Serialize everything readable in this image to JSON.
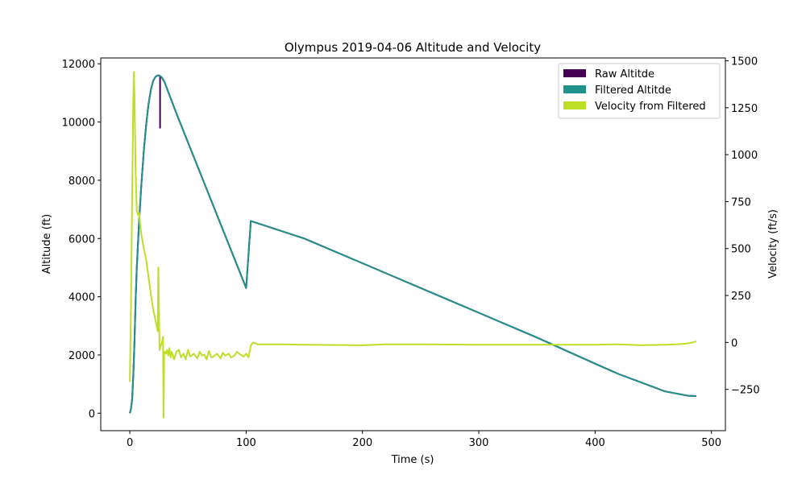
{
  "chart_data": {
    "type": "line",
    "title": "Olympus 2019-04-06 Altitude and Velocity",
    "xlabel": "Time (s)",
    "ylabel_left": "Altitude (ft)",
    "ylabel_right": "Velocity (ft/s)",
    "xlim": [
      -25,
      512
    ],
    "ylim_left": [
      -600,
      12200
    ],
    "ylim_right": [
      -470,
      1515
    ],
    "xticks": [
      0,
      100,
      200,
      300,
      400,
      500
    ],
    "yticks_left": [
      0,
      2000,
      4000,
      6000,
      8000,
      10000,
      12000
    ],
    "yticks_right": [
      -250,
      0,
      250,
      500,
      750,
      1000,
      1250,
      1500
    ],
    "grid": false,
    "legend_position": "top-right",
    "series": [
      {
        "name": "Raw Altitde",
        "axis": "left",
        "color": "#440154",
        "x": [
          0,
          1,
          2,
          3,
          4,
          5,
          6,
          8,
          10,
          12,
          14,
          16,
          18,
          20,
          22,
          24,
          25,
          26,
          26.01,
          26.02,
          27,
          28,
          30,
          40,
          50,
          60,
          70,
          80,
          90,
          100,
          104,
          150,
          200,
          250,
          300,
          350,
          400,
          420,
          440,
          460,
          480,
          487
        ],
        "values": [
          0,
          150,
          500,
          1300,
          2500,
          3900,
          5000,
          6600,
          7900,
          9000,
          9900,
          10600,
          11100,
          11400,
          11550,
          11600,
          11600,
          11580,
          9800,
          11580,
          11550,
          11500,
          11350,
          10300,
          9300,
          8300,
          7300,
          6300,
          5300,
          4300,
          6600,
          6000,
          5150,
          4300,
          3450,
          2600,
          1700,
          1350,
          1050,
          750,
          600,
          590
        ]
      },
      {
        "name": "Filtered Altitde",
        "axis": "left",
        "color": "#21918c",
        "x": [
          0,
          1,
          2,
          3,
          4,
          5,
          6,
          8,
          10,
          12,
          14,
          16,
          18,
          20,
          22,
          24,
          25,
          26,
          27,
          28,
          30,
          40,
          50,
          60,
          70,
          80,
          90,
          100,
          104,
          150,
          200,
          250,
          300,
          350,
          400,
          420,
          440,
          460,
          480,
          487
        ],
        "values": [
          0,
          150,
          500,
          1300,
          2500,
          3900,
          5000,
          6600,
          7900,
          9000,
          9900,
          10600,
          11100,
          11400,
          11550,
          11600,
          11600,
          11580,
          11550,
          11500,
          11350,
          10300,
          9300,
          8300,
          7300,
          6300,
          5300,
          4300,
          6600,
          6000,
          5150,
          4300,
          3450,
          2600,
          1700,
          1350,
          1050,
          750,
          600,
          590
        ]
      },
      {
        "name": "Velocity from Filtered",
        "axis": "right",
        "color": "#bddf26",
        "x": [
          0,
          1,
          2,
          3,
          3.5,
          4,
          5,
          6,
          7,
          8,
          9,
          10,
          12,
          14,
          16,
          18,
          20,
          22,
          24,
          24.5,
          25,
          25.5,
          26,
          27,
          28,
          28.5,
          29,
          29.5,
          30,
          31,
          32,
          33,
          34,
          35,
          36,
          38,
          40,
          42,
          44,
          46,
          48,
          50,
          52,
          55,
          58,
          60,
          62,
          64,
          66,
          68,
          70,
          72,
          75,
          78,
          80,
          82,
          85,
          87,
          90,
          92,
          95,
          98,
          100,
          102,
          104,
          106,
          110,
          130,
          150,
          200,
          220,
          250,
          300,
          350,
          400,
          420,
          440,
          460,
          470,
          480,
          487
        ],
        "values": [
          -210,
          200,
          800,
          1300,
          1440,
          1300,
          900,
          700,
          680,
          690,
          620,
          570,
          500,
          440,
          350,
          260,
          180,
          120,
          60,
          400,
          200,
          -40,
          -30,
          -10,
          10,
          30,
          -400,
          -50,
          -50,
          -60,
          -40,
          -70,
          -30,
          -80,
          -50,
          -90,
          -50,
          -40,
          -80,
          -60,
          -90,
          -40,
          -75,
          -60,
          -85,
          -50,
          -70,
          -65,
          -90,
          -45,
          -80,
          -75,
          -60,
          -85,
          -55,
          -70,
          -60,
          -80,
          -70,
          -50,
          -65,
          -75,
          -60,
          -80,
          -15,
          0,
          -10,
          -10,
          -12,
          -15,
          -10,
          -10,
          -12,
          -12,
          -12,
          -10,
          -15,
          -12,
          -10,
          -5,
          5
        ]
      }
    ]
  }
}
